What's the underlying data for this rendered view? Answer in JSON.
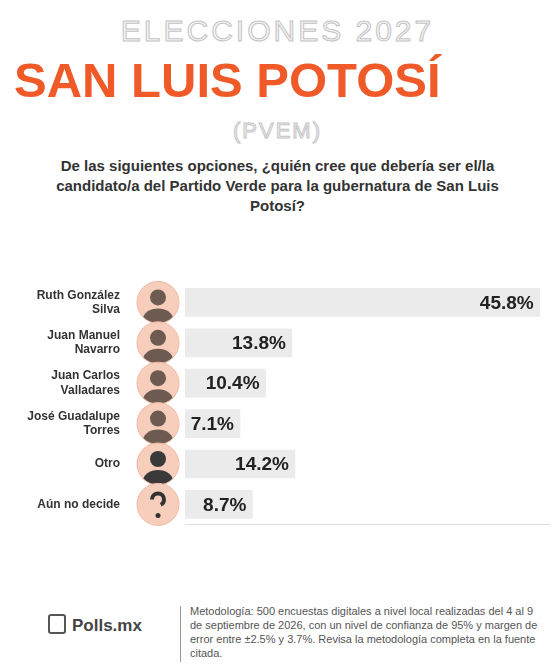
{
  "header": {
    "kicker": "ELECCIONES 2027",
    "title": "SAN LUIS POTOSÍ",
    "party": "(PVEM)"
  },
  "chart_data": {
    "type": "bar",
    "orientation": "horizontal",
    "title": "De las siguientes opciones, ¿quién cree que debería ser el/la candidato/a del Partido Verde para la gubernatura de San Luis Potosí?",
    "categories": [
      "Ruth González Silva",
      "Juan Manuel Navarro",
      "Juan Carlos Valladares",
      "José Guadalupe Torres",
      "Otro",
      "Aún no decide"
    ],
    "values": [
      45.8,
      13.8,
      10.4,
      7.1,
      14.2,
      8.7
    ],
    "value_labels": [
      "45.8%",
      "13.8%",
      "10.4%",
      "7.1%",
      "14.2%",
      "8.7%"
    ],
    "color": "#ebebeb",
    "xlim": [
      0,
      47
    ],
    "grid": false,
    "data_labels": true,
    "tick_labels": "y"
  },
  "footer": {
    "logo": "Polls.mx",
    "methodology": "Metodología: 500 encuestas digitales a nivel local realizadas del 4 al 9 de septiembre de 2026, con un nivel de confianza de 95% y margen de error entre ±2.5% y 3.7%.",
    "note": "Revisa la metodología completa en la fuente citada."
  }
}
